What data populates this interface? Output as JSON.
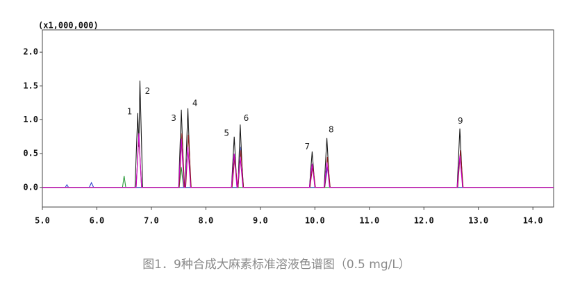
{
  "chart_data": {
    "type": "line",
    "unit_label": "(x1,000,000)",
    "caption": "图1．9种合成大麻素标准溶液色谱图（0.5 mg/L）",
    "xlim": [
      5.0,
      14.38
    ],
    "ylim": [
      -0.29,
      2.33
    ],
    "xticks": [
      {
        "value": 5,
        "label": "5.0"
      },
      {
        "value": 6,
        "label": "6.0"
      },
      {
        "value": 7,
        "label": "7.0"
      },
      {
        "value": 8,
        "label": "8.0"
      },
      {
        "value": 9,
        "label": "9.0"
      },
      {
        "value": 10,
        "label": "10.0"
      },
      {
        "value": 11,
        "label": "11.0"
      },
      {
        "value": 12,
        "label": "12.0"
      },
      {
        "value": 13,
        "label": "13.0"
      },
      {
        "value": 14,
        "label": "14.0"
      }
    ],
    "yticks": [
      {
        "value": 0,
        "label": "0.0"
      },
      0.5,
      {
        "value": 1,
        "label": "1.0"
      },
      1.5,
      {
        "value": 2,
        "label": "2.0"
      }
    ],
    "series": [
      {
        "color": "#2a9a3a",
        "x": [
          5.0,
          6.47,
          6.5,
          6.53,
          7.51,
          7.55,
          7.59,
          14.38
        ],
        "values": [
          0,
          0,
          0.17,
          0,
          0,
          0.3,
          0,
          0
        ]
      },
      {
        "color": "#3344cc",
        "x": [
          5.0,
          5.42,
          5.45,
          5.48,
          5.86,
          5.9,
          5.94,
          8.59,
          8.64,
          8.69,
          10.18,
          10.23,
          10.28,
          14.38
        ],
        "values": [
          0,
          0,
          0.04,
          0,
          0,
          0.07,
          0,
          0,
          0.6,
          0,
          0,
          0.3,
          0,
          0
        ]
      },
      {
        "color": "#1a1a1a",
        "x": [
          5.0,
          6.7,
          6.75,
          6.77,
          6.79,
          6.84,
          7.5,
          7.55,
          7.6,
          7.62,
          7.67,
          7.72,
          8.47,
          8.52,
          8.57,
          8.59,
          8.63,
          8.68,
          9.9,
          9.95,
          10.0,
          10.17,
          10.22,
          10.27,
          12.61,
          12.66,
          12.71,
          14.38
        ],
        "values": [
          0,
          0,
          1.1,
          0.6,
          1.58,
          0,
          0,
          1.15,
          0,
          0,
          1.17,
          0,
          0,
          0.75,
          0,
          0,
          0.93,
          0,
          0,
          0.53,
          0,
          0,
          0.73,
          0,
          0,
          0.87,
          0,
          0
        ]
      },
      {
        "color": "#8b1a1a",
        "x": [
          5.0,
          6.72,
          6.77,
          6.82,
          7.51,
          7.56,
          7.61,
          7.63,
          7.68,
          7.73,
          8.48,
          8.53,
          8.58,
          8.59,
          8.64,
          8.69,
          9.91,
          9.96,
          10.01,
          10.18,
          10.23,
          10.28,
          12.62,
          12.67,
          12.72,
          14.38
        ],
        "values": [
          0,
          0,
          0.75,
          0,
          0,
          0.8,
          0,
          0,
          0.78,
          0,
          0,
          0.45,
          0,
          0,
          0.55,
          0,
          0,
          0.33,
          0,
          0,
          0.45,
          0,
          0,
          0.55,
          0,
          0
        ]
      },
      {
        "color": "#cc00cc",
        "x": [
          5.0,
          6.72,
          6.77,
          6.82,
          7.5,
          7.55,
          7.6,
          7.62,
          7.67,
          7.72,
          8.47,
          8.52,
          8.57,
          8.58,
          8.63,
          8.68,
          9.9,
          9.95,
          10.0,
          10.17,
          10.22,
          10.27,
          12.61,
          12.66,
          12.71,
          14.38
        ],
        "values": [
          0,
          0,
          0.8,
          0,
          0,
          0.72,
          0,
          0,
          0.6,
          0,
          0,
          0.5,
          0,
          0,
          0.45,
          0,
          0,
          0.35,
          0,
          0,
          0.37,
          0,
          0,
          0.47,
          0,
          0
        ]
      }
    ],
    "annotations": [
      {
        "text": "1",
        "x": 6.6,
        "y": 1.12
      },
      {
        "text": "2",
        "x": 6.93,
        "y": 1.42
      },
      {
        "text": "3",
        "x": 7.41,
        "y": 1.02
      },
      {
        "text": "4",
        "x": 7.8,
        "y": 1.24
      },
      {
        "text": "5",
        "x": 8.38,
        "y": 0.8
      },
      {
        "text": "6",
        "x": 8.74,
        "y": 1.02
      },
      {
        "text": "7",
        "x": 9.86,
        "y": 0.6
      },
      {
        "text": "8",
        "x": 10.3,
        "y": 0.85
      },
      {
        "text": "9",
        "x": 12.67,
        "y": 0.98
      }
    ]
  }
}
